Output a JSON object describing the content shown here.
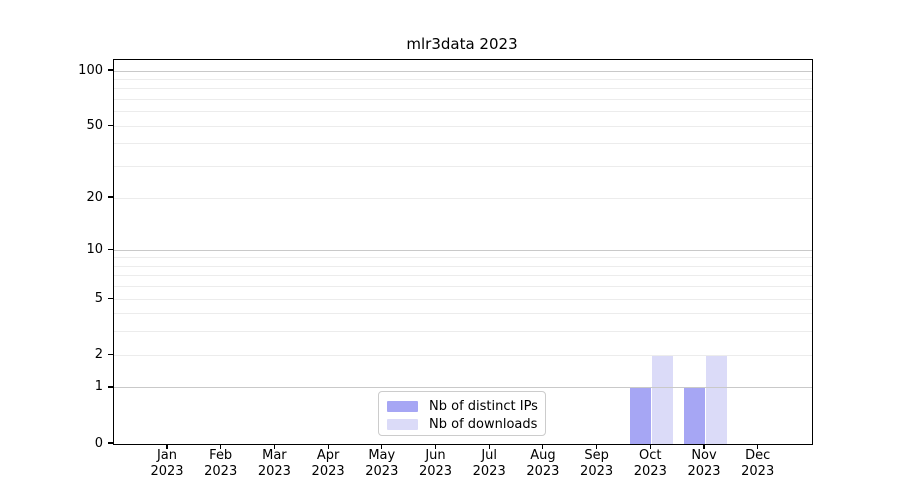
{
  "chart_data": {
    "type": "bar",
    "title": "mlr3data 2023",
    "x_ticks": [
      {
        "month": "Jan",
        "year": "2023"
      },
      {
        "month": "Feb",
        "year": "2023"
      },
      {
        "month": "Mar",
        "year": "2023"
      },
      {
        "month": "Apr",
        "year": "2023"
      },
      {
        "month": "May",
        "year": "2023"
      },
      {
        "month": "Jun",
        "year": "2023"
      },
      {
        "month": "Jul",
        "year": "2023"
      },
      {
        "month": "Aug",
        "year": "2023"
      },
      {
        "month": "Sep",
        "year": "2023"
      },
      {
        "month": "Oct",
        "year": "2023"
      },
      {
        "month": "Nov",
        "year": "2023"
      },
      {
        "month": "Dec",
        "year": "2023"
      }
    ],
    "series": [
      {
        "name": "Nb of distinct IPs",
        "color": "#a6a6f4",
        "values": [
          0,
          0,
          0,
          0,
          0,
          0,
          0,
          0,
          0,
          1,
          1,
          0
        ]
      },
      {
        "name": "Nb of downloads",
        "color": "#dbdbf8",
        "values": [
          0,
          0,
          0,
          0,
          0,
          0,
          0,
          0,
          0,
          2,
          2,
          0
        ]
      }
    ],
    "y_ticks": [
      {
        "label": "100",
        "value": 100
      },
      {
        "label": "50",
        "value": 50
      },
      {
        "label": "20",
        "value": 20
      },
      {
        "label": "10",
        "value": 10
      },
      {
        "label": "5",
        "value": 5
      },
      {
        "label": "2",
        "value": 2
      },
      {
        "label": "1",
        "value": 1
      },
      {
        "label": "0",
        "value": 0
      }
    ],
    "y_gridlines": {
      "major": [
        1,
        10,
        100
      ],
      "minor": [
        2,
        3,
        4,
        5,
        6,
        7,
        8,
        9,
        20,
        30,
        40,
        50,
        60,
        70,
        80,
        90
      ]
    },
    "y_scale": "log1p",
    "ylim": [
      0,
      114
    ],
    "xlabel": "",
    "ylabel": "",
    "grid": "horizontal",
    "legend_position": "inside-bottom-center"
  },
  "colors": {
    "background": "#ffffff",
    "spine": "#000000",
    "grid_major": "#c9c9c9",
    "grid_minor": "#ececec",
    "text": "#000000",
    "bar_distinct_ips": "#a6a6f4",
    "bar_downloads": "#dbdbf8",
    "legend_border": "#cccccc"
  }
}
